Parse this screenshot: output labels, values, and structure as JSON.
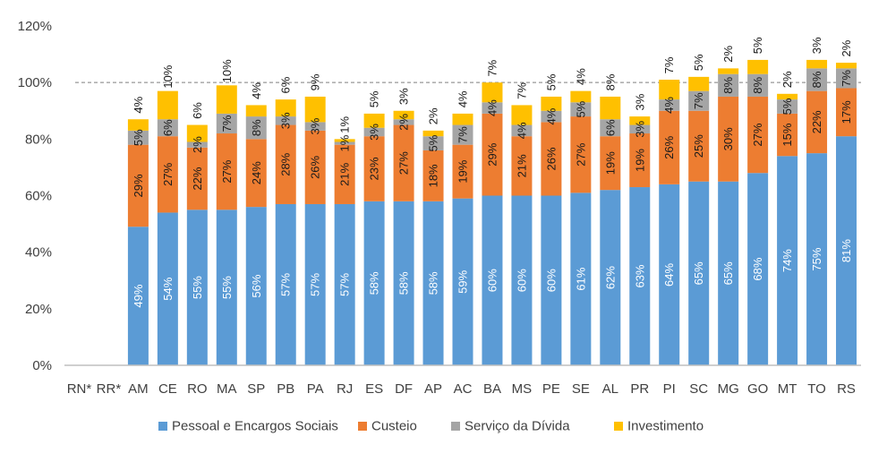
{
  "chart_data": {
    "type": "bar",
    "stacked": true,
    "categories": [
      "RN*",
      "RR*",
      "AM",
      "CE",
      "RO",
      "MA",
      "SP",
      "PB",
      "PA",
      "RJ",
      "ES",
      "DF",
      "AP",
      "AC",
      "BA",
      "MS",
      "PE",
      "SE",
      "AL",
      "PR",
      "PI",
      "SC",
      "MG",
      "GO",
      "MT",
      "TO",
      "RS"
    ],
    "series": [
      {
        "name": "Pessoal e Encargos Sociais",
        "color": "#5B9BD5",
        "values": [
          null,
          null,
          49,
          54,
          55,
          55,
          56,
          57,
          57,
          57,
          58,
          58,
          58,
          59,
          60,
          60,
          60,
          61,
          62,
          63,
          64,
          65,
          65,
          68,
          74,
          75,
          81
        ]
      },
      {
        "name": "Custeio",
        "color": "#ED7D31",
        "values": [
          null,
          null,
          29,
          27,
          22,
          27,
          24,
          28,
          26,
          21,
          23,
          27,
          18,
          19,
          29,
          21,
          26,
          27,
          19,
          19,
          26,
          25,
          30,
          27,
          15,
          22,
          17
        ]
      },
      {
        "name": "Serviço da Dívida",
        "color": "#A5A5A5",
        "values": [
          null,
          null,
          5,
          6,
          2,
          7,
          8,
          3,
          3,
          1,
          3,
          2,
          5,
          7,
          4,
          4,
          4,
          5,
          6,
          3,
          4,
          7,
          8,
          8,
          5,
          8,
          7
        ]
      },
      {
        "name": "Investimento",
        "color": "#FFC000",
        "values": [
          null,
          null,
          4,
          10,
          6,
          10,
          4,
          6,
          9,
          1,
          5,
          3,
          2,
          4,
          7,
          7,
          5,
          4,
          8,
          3,
          7,
          5,
          2,
          5,
          2,
          3,
          2
        ]
      }
    ],
    "yticks": [
      "0%",
      "20%",
      "40%",
      "60%",
      "80%",
      "100%",
      "120%"
    ],
    "ylim": [
      0,
      120
    ],
    "reference_line": 100,
    "legend_position": "bottom",
    "grid": false
  }
}
